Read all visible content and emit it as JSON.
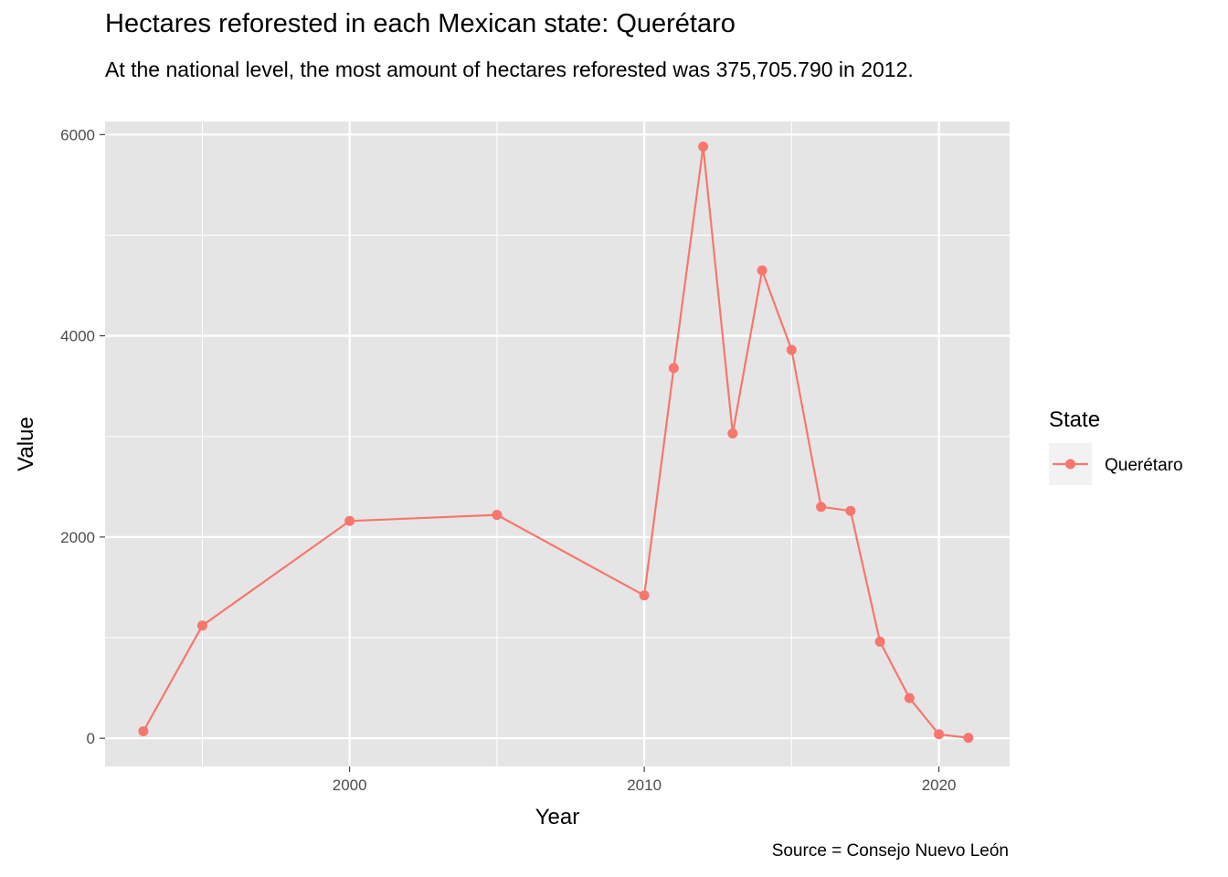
{
  "chart_data": {
    "type": "line",
    "title": "Hectares reforested in each Mexican state: Querétaro",
    "subtitle": "At the national level, the most amount of hectares reforested was 375,705.790 in 2012.",
    "caption": "Source = Consejo Nuevo León",
    "xlabel": "Year",
    "ylabel": "Value",
    "xlim": [
      1991.7,
      2022.4
    ],
    "ylim": [
      -280,
      6130
    ],
    "x_ticks": [
      2000,
      2010,
      2020
    ],
    "x_minor": [
      1995,
      2005,
      2015
    ],
    "y_ticks": [
      0,
      2000,
      4000,
      6000
    ],
    "y_minor": [
      1000,
      3000,
      5000
    ],
    "grid": true,
    "legend": {
      "title": "State",
      "position": "right"
    },
    "series": [
      {
        "name": "Querétaro",
        "color": "#f8766d",
        "x": [
          1993,
          1995,
          2000,
          2005,
          2010,
          2011,
          2012,
          2013,
          2014,
          2015,
          2016,
          2017,
          2018,
          2019,
          2020,
          2021
        ],
        "y": [
          70,
          1120,
          2160,
          2220,
          1420,
          3680,
          5880,
          3030,
          4650,
          3860,
          2300,
          2260,
          960,
          400,
          40,
          5
        ]
      }
    ]
  }
}
